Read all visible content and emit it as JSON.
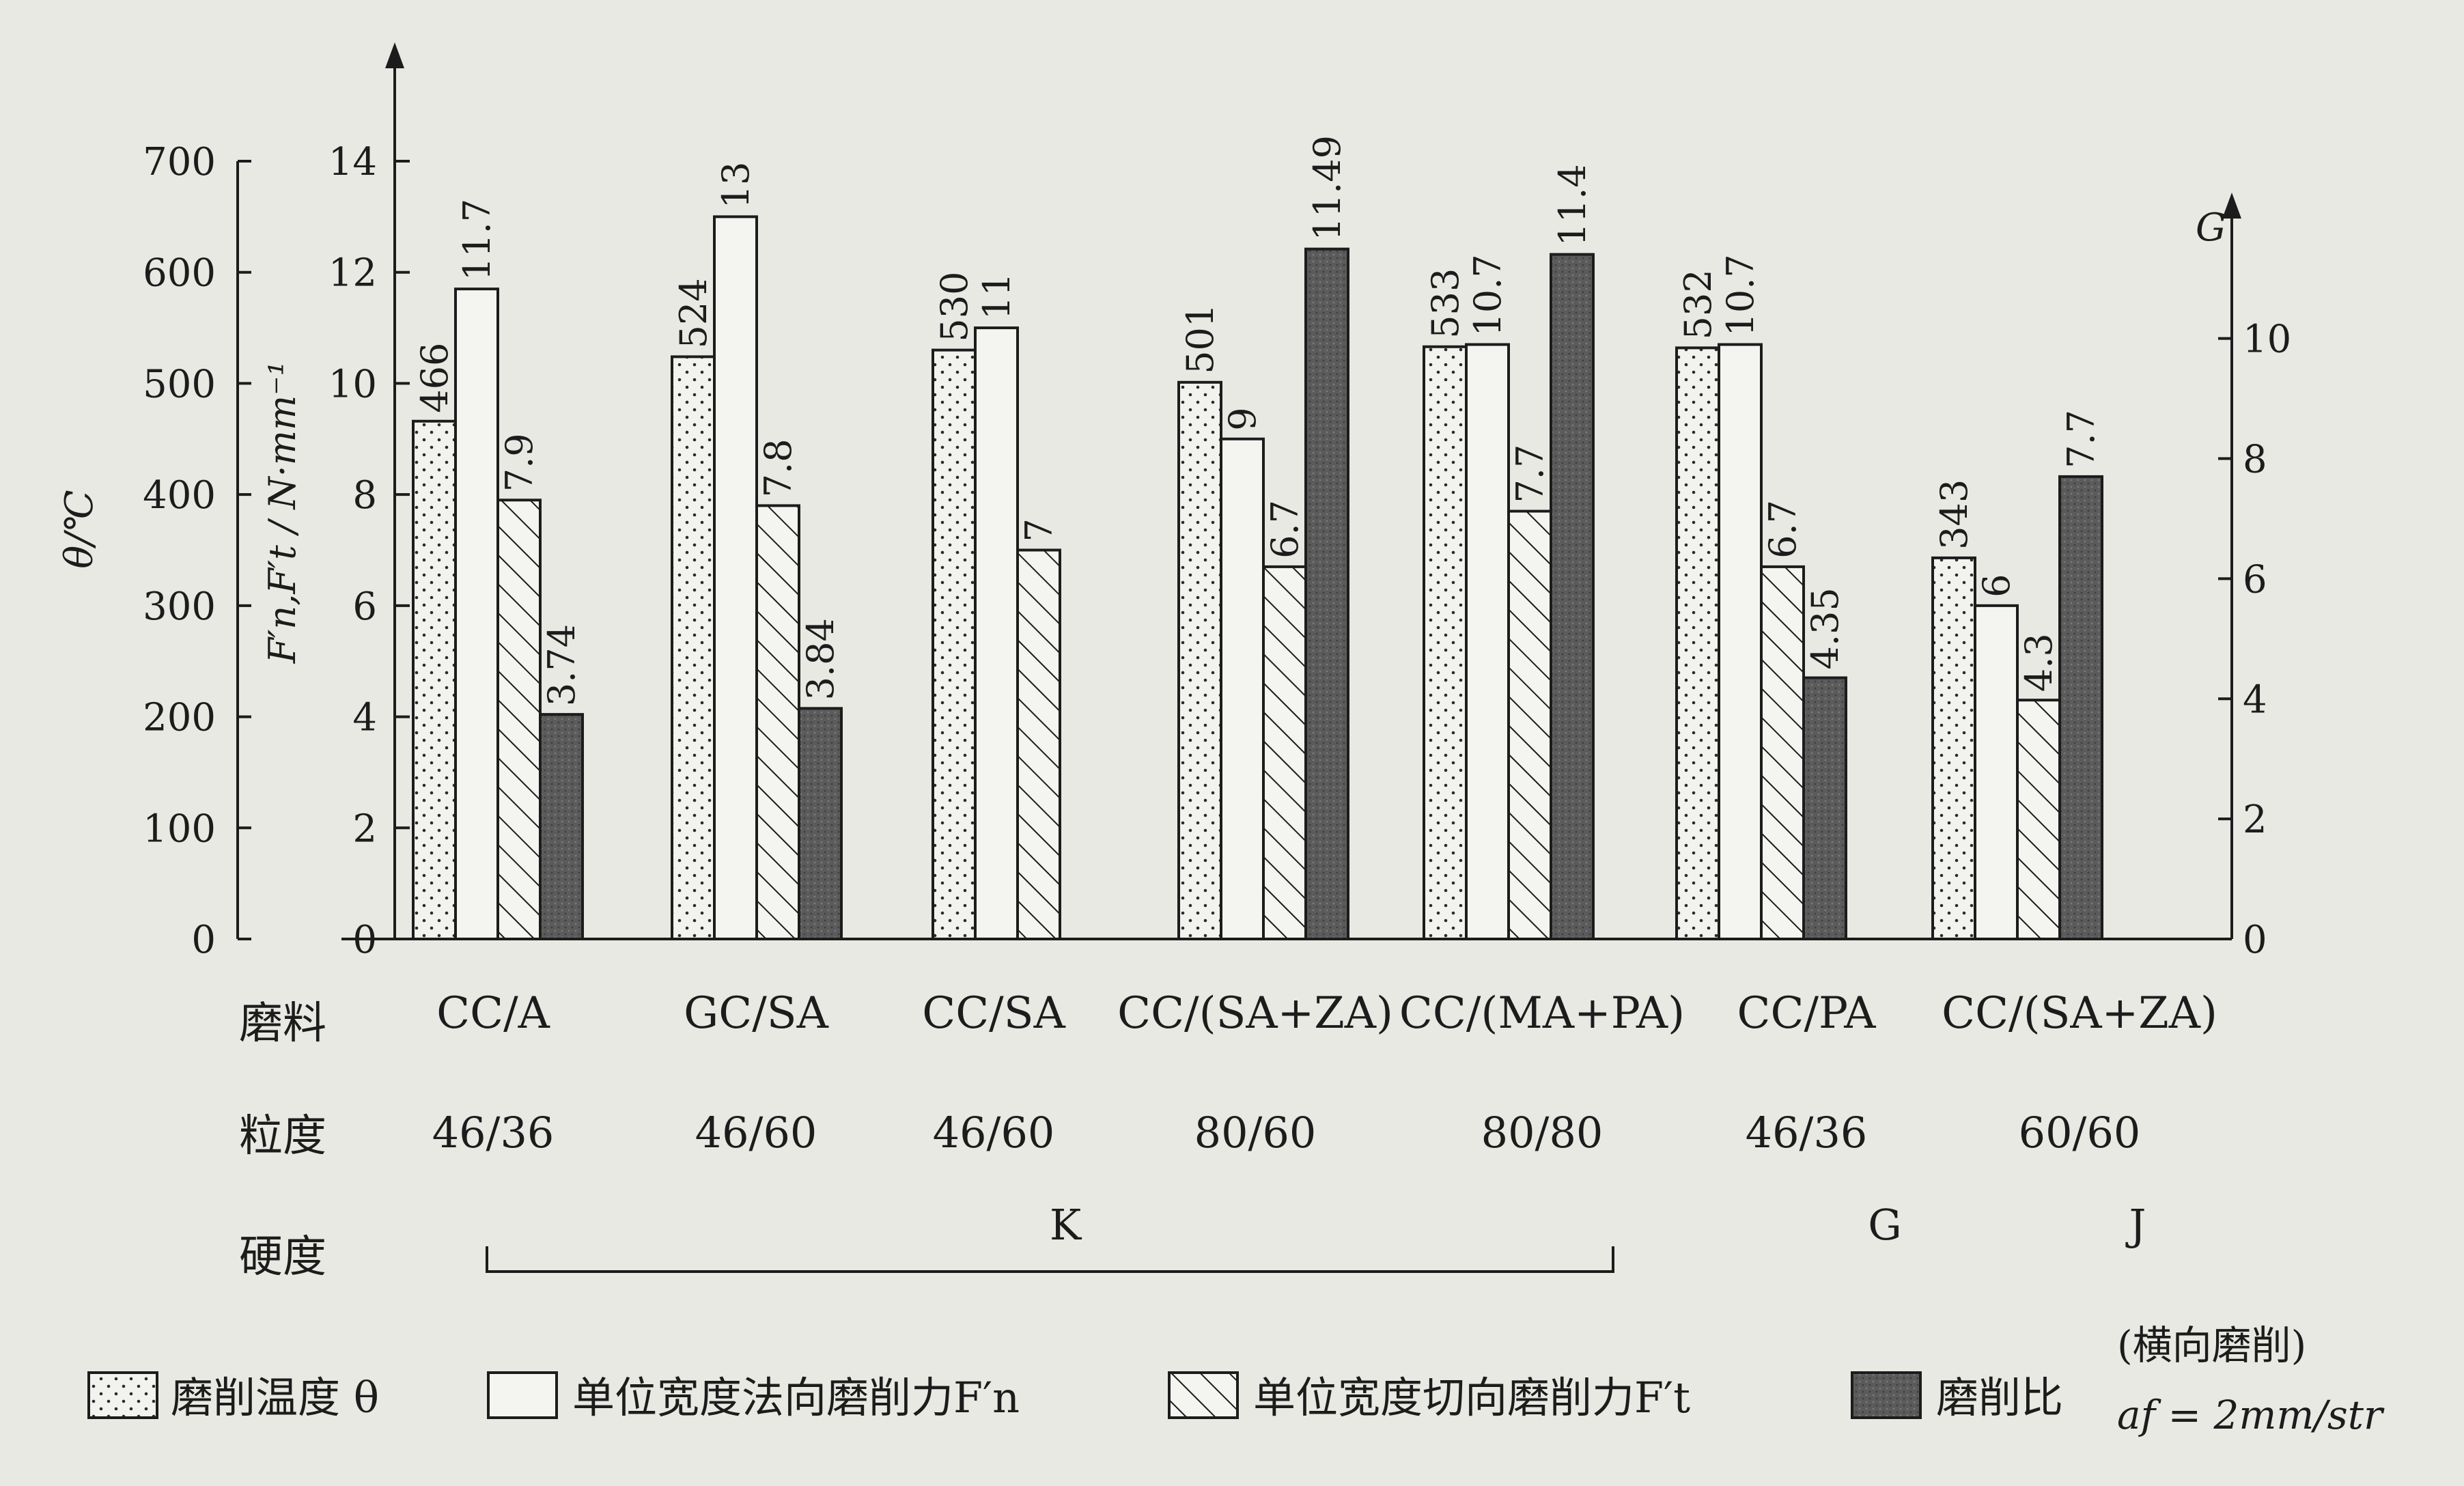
{
  "chart_data": {
    "type": "bar",
    "axes": {
      "temp": {
        "label": "θ/℃",
        "ticks": [
          0,
          100,
          200,
          300,
          400,
          500,
          600,
          700
        ],
        "ylim": [
          0,
          700
        ]
      },
      "force": {
        "label": "F′n,F′t / N·mm⁻¹",
        "ticks": [
          0,
          2,
          4,
          6,
          8,
          10,
          12,
          14
        ],
        "ylim": [
          0,
          14
        ]
      },
      "ratio": {
        "label": "G",
        "ticks": [
          0,
          2,
          4,
          6,
          8,
          10
        ],
        "ylim": [
          0,
          12.1
        ]
      }
    },
    "groups": [
      {
        "abrasive": "CC/A",
        "grit": "46/36",
        "values": {
          "temp": 466,
          "fn": 11.7,
          "ft": 7.9,
          "g": 3.74
        },
        "labels": {
          "temp": "466",
          "fn": "11.7",
          "ft": "7.9",
          "g": "3.74"
        }
      },
      {
        "abrasive": "GC/SA",
        "grit": "46/60",
        "values": {
          "temp": 524,
          "fn": 13,
          "ft": 7.8,
          "g": 3.84
        },
        "labels": {
          "temp": "524",
          "fn": "13",
          "ft": "7.8",
          "g": "3.84"
        }
      },
      {
        "abrasive": "CC/SA",
        "grit": "46/60",
        "values": {
          "temp": 530,
          "fn": 11,
          "ft": 7,
          "g": null
        },
        "labels": {
          "temp": "530",
          "fn": "11",
          "ft": "7",
          "g": ""
        }
      },
      {
        "abrasive": "CC/(SA+ZA)",
        "grit": "80/60",
        "values": {
          "temp": 501,
          "fn": 9,
          "ft": 6.7,
          "g": 11.49
        },
        "labels": {
          "temp": "501",
          "fn": "9",
          "ft": "6.7",
          "g": "11.49"
        }
      },
      {
        "abrasive": "CC/(MA+PA)",
        "grit": "80/80",
        "values": {
          "temp": 533,
          "fn": 10.7,
          "ft": 7.7,
          "g": 11.4
        },
        "labels": {
          "temp": "533",
          "fn": "10.7",
          "ft": "7.7",
          "g": "11.4"
        }
      },
      {
        "abrasive": "CC/PA",
        "grit": "46/36",
        "values": {
          "temp": 532,
          "fn": 10.7,
          "ft": 6.7,
          "g": 4.35
        },
        "labels": {
          "temp": "532",
          "fn": "10.7",
          "ft": "6.7",
          "g": "4.35"
        }
      },
      {
        "abrasive": "CC/(SA+ZA)",
        "grit": "60/60",
        "values": {
          "temp": 343,
          "fn": 6,
          "ft": 4.3,
          "g": 7.7
        },
        "labels": {
          "temp": "343",
          "fn": "6",
          "ft": "4.3",
          "g": "7.7"
        }
      }
    ],
    "row_labels": {
      "abrasive": "磨料",
      "grit": "粒度",
      "hardness": "硬度"
    },
    "hardness": {
      "K": "K",
      "G": "G",
      "J": "J"
    },
    "legend": {
      "temp": "磨削温度 θ",
      "fn": "单位宽度法向磨削力F′n",
      "ft": "单位宽度切向磨削力F′t",
      "g": "磨削比",
      "note_line1": "(横向磨削)",
      "note_line2": "af = 2mm/str"
    },
    "colors": {
      "background": "#e9e9e4",
      "ink": "#1c1c1c",
      "bar_fill": "#f4f4f0",
      "ratio_fill": "#5f5f5f"
    },
    "grid": false
  }
}
